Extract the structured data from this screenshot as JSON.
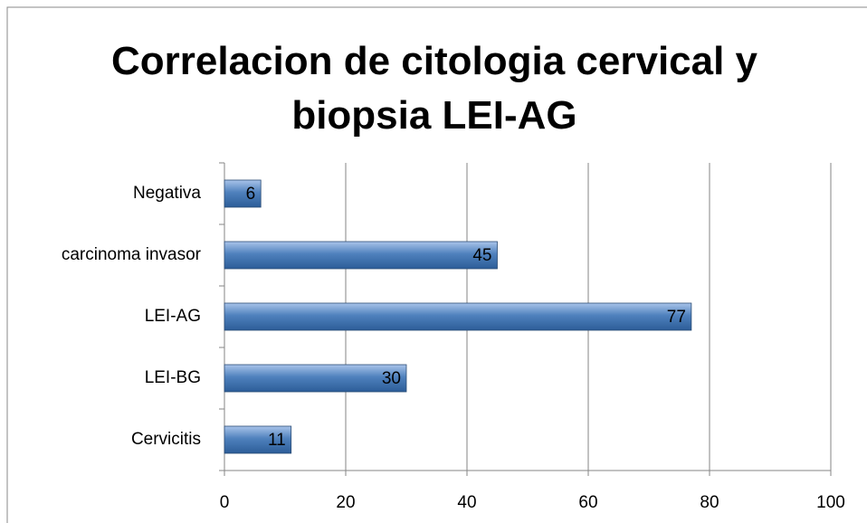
{
  "chart_data": {
    "type": "bar",
    "orientation": "horizontal",
    "title": "Correlacion de citologia cervical y biopsia LEI-AG",
    "categories": [
      "Cervicitis",
      "LEI-BG",
      "LEI-AG",
      "carcinoma invasor",
      "Negativa"
    ],
    "values": [
      11,
      30,
      77,
      45,
      6
    ],
    "color": "#4f81bd",
    "xlim": [
      0,
      100
    ],
    "xticks": [
      0,
      20,
      40,
      60,
      80,
      100
    ],
    "grid": true,
    "data_labels": true
  }
}
